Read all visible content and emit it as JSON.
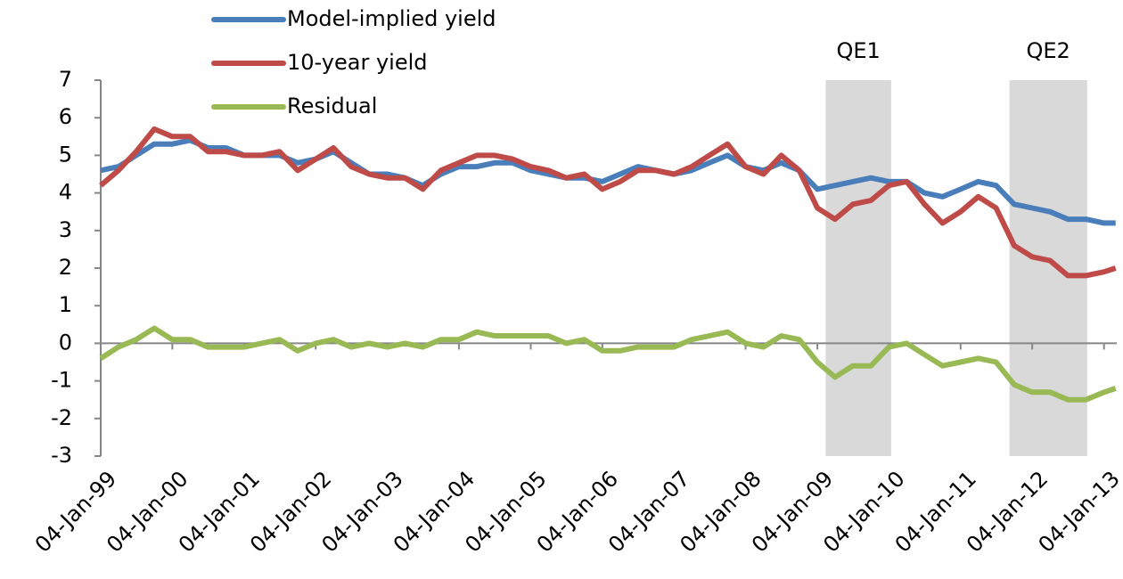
{
  "chart_data": {
    "type": "line",
    "x": [
      "1999-01-04",
      "1999-04-04",
      "1999-07-04",
      "1999-10-04",
      "2000-01-04",
      "2000-04-04",
      "2000-07-04",
      "2000-10-04",
      "2001-01-04",
      "2001-04-04",
      "2001-07-04",
      "2001-10-04",
      "2002-01-04",
      "2002-04-04",
      "2002-07-04",
      "2002-10-04",
      "2003-01-04",
      "2003-04-04",
      "2003-07-04",
      "2003-10-04",
      "2004-01-04",
      "2004-04-04",
      "2004-07-04",
      "2004-10-04",
      "2005-01-04",
      "2005-04-04",
      "2005-07-04",
      "2005-10-04",
      "2006-01-04",
      "2006-04-04",
      "2006-07-04",
      "2006-10-04",
      "2007-01-04",
      "2007-04-04",
      "2007-07-04",
      "2007-10-04",
      "2008-01-04",
      "2008-04-04",
      "2008-07-04",
      "2008-10-04",
      "2009-01-04",
      "2009-04-04",
      "2009-07-04",
      "2009-10-04",
      "2010-01-04",
      "2010-04-04",
      "2010-07-04",
      "2010-10-04",
      "2011-01-04",
      "2011-04-04",
      "2011-07-04",
      "2011-10-04",
      "2012-01-04",
      "2012-04-04",
      "2012-07-04",
      "2012-10-04",
      "2013-01-04",
      "2013-03-04"
    ],
    "series": [
      {
        "name": "Model-implied yield",
        "color": "#4a7ebb",
        "values": [
          4.6,
          4.7,
          5.0,
          5.3,
          5.3,
          5.4,
          5.2,
          5.2,
          5.0,
          5.0,
          5.0,
          4.8,
          4.9,
          5.1,
          4.8,
          4.5,
          4.5,
          4.4,
          4.2,
          4.5,
          4.7,
          4.7,
          4.8,
          4.8,
          4.6,
          4.5,
          4.4,
          4.4,
          4.3,
          4.5,
          4.7,
          4.6,
          4.5,
          4.6,
          4.8,
          5.0,
          4.7,
          4.6,
          4.8,
          4.6,
          4.1,
          4.2,
          4.3,
          4.4,
          4.3,
          4.3,
          4.0,
          3.9,
          4.1,
          4.3,
          4.2,
          3.7,
          3.6,
          3.5,
          3.3,
          3.3,
          3.2,
          3.2
        ]
      },
      {
        "name": "10-year yield",
        "color": "#be4b48",
        "values": [
          4.2,
          4.6,
          5.1,
          5.7,
          5.5,
          5.5,
          5.1,
          5.1,
          5.0,
          5.0,
          5.1,
          4.6,
          4.9,
          5.2,
          4.7,
          4.5,
          4.4,
          4.4,
          4.1,
          4.6,
          4.8,
          5.0,
          5.0,
          4.9,
          4.7,
          4.6,
          4.4,
          4.5,
          4.1,
          4.3,
          4.6,
          4.6,
          4.5,
          4.7,
          5.0,
          5.3,
          4.7,
          4.5,
          5.0,
          4.6,
          3.6,
          3.3,
          3.7,
          3.8,
          4.2,
          4.3,
          3.7,
          3.2,
          3.5,
          3.9,
          3.6,
          2.6,
          2.3,
          2.2,
          1.8,
          1.8,
          1.9,
          2.0
        ]
      },
      {
        "name": "Residual",
        "color": "#98b954",
        "values": [
          -0.4,
          -0.1,
          0.1,
          0.4,
          0.1,
          0.1,
          -0.1,
          -0.1,
          -0.1,
          0,
          0.1,
          -0.2,
          0,
          0.1,
          -0.1,
          0,
          -0.1,
          0,
          -0.1,
          0.1,
          0.1,
          0.3,
          0.2,
          0.2,
          0.2,
          0.2,
          0,
          0.1,
          -0.2,
          -0.2,
          -0.1,
          -0.1,
          -0.1,
          0.1,
          0.2,
          0.3,
          0,
          -0.1,
          0.2,
          0.1,
          -0.5,
          -0.9,
          -0.6,
          -0.6,
          -0.1,
          0,
          -0.3,
          -0.6,
          -0.5,
          -0.4,
          -0.5,
          -1.1,
          -1.3,
          -1.3,
          -1.5,
          -1.5,
          -1.3,
          -1.2
        ]
      }
    ],
    "xlim": [
      "1999-01-04",
      "2013-03-10"
    ],
    "xticks": [
      {
        "value": "1999-01-04",
        "label": "04-Jan-99"
      },
      {
        "value": "2000-01-04",
        "label": "04-Jan-00"
      },
      {
        "value": "2001-01-04",
        "label": "04-Jan-01"
      },
      {
        "value": "2002-01-04",
        "label": "04-Jan-02"
      },
      {
        "value": "2003-01-04",
        "label": "04-Jan-03"
      },
      {
        "value": "2004-01-04",
        "label": "04-Jan-04"
      },
      {
        "value": "2005-01-04",
        "label": "04-Jan-05"
      },
      {
        "value": "2006-01-04",
        "label": "04-Jan-06"
      },
      {
        "value": "2007-01-04",
        "label": "04-Jan-07"
      },
      {
        "value": "2008-01-04",
        "label": "04-Jan-08"
      },
      {
        "value": "2009-01-04",
        "label": "04-Jan-09"
      },
      {
        "value": "2010-01-04",
        "label": "04-Jan-10"
      },
      {
        "value": "2011-01-04",
        "label": "04-Jan-11"
      },
      {
        "value": "2012-01-04",
        "label": "04-Jan-12"
      },
      {
        "value": "2013-01-04",
        "label": "04-Jan-13"
      }
    ],
    "ylim": [
      -3,
      7
    ],
    "yticks": [
      -3,
      -2,
      -1,
      0,
      1,
      2,
      3,
      4,
      5,
      6,
      7
    ],
    "shaded_periods": [
      {
        "label": "QE1",
        "start": "2009-02-15",
        "end": "2010-01-15"
      },
      {
        "label": "QE2",
        "start": "2011-09-10",
        "end": "2012-10-10"
      }
    ],
    "shade_color": "#d9d9d9"
  }
}
